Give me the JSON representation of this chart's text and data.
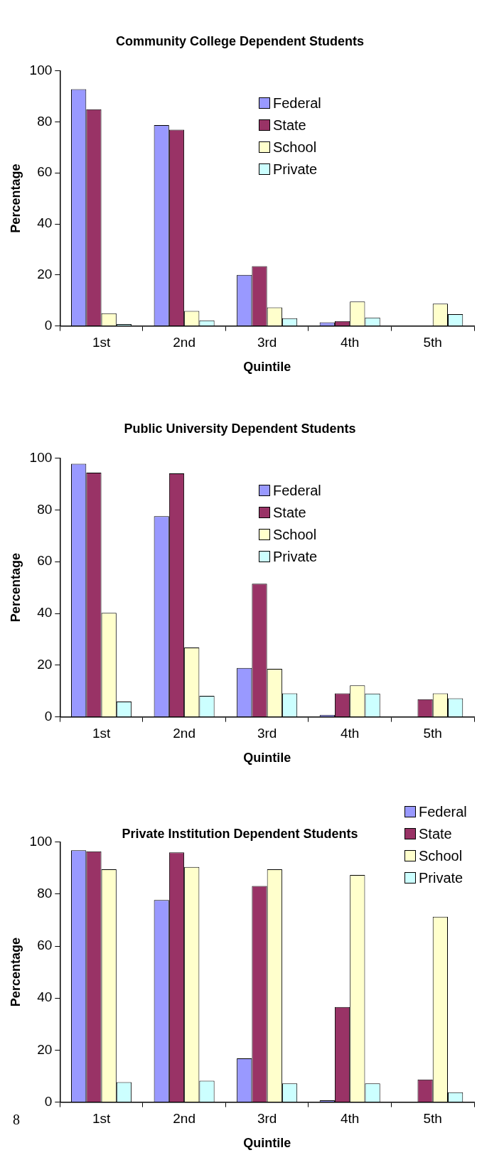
{
  "chart_data": [
    {
      "type": "bar",
      "title": "Community College Dependent Students",
      "xlabel": "Quintile",
      "ylabel": "Percentage",
      "categories": [
        "1st",
        "2nd",
        "3rd",
        "4th",
        "5th"
      ],
      "series": [
        {
          "name": "Federal",
          "color": "#9999ff",
          "values": [
            92.8,
            78.7,
            20.0,
            1.4,
            0
          ]
        },
        {
          "name": "State",
          "color": "#993366",
          "values": [
            84.9,
            76.9,
            23.4,
            1.9,
            0
          ]
        },
        {
          "name": "School",
          "color": "#ffffcc",
          "values": [
            5.0,
            5.9,
            7.3,
            9.6,
            8.7
          ]
        },
        {
          "name": "Private",
          "color": "#ccffff",
          "values": [
            0.7,
            2.2,
            3.0,
            3.3,
            4.6
          ]
        }
      ],
      "ylim": [
        0,
        100
      ],
      "yticks": [
        0,
        20,
        40,
        60,
        80,
        100
      ],
      "grid": false,
      "legend": "top"
    },
    {
      "type": "bar",
      "title": "Public University Dependent Students",
      "xlabel": "Quintile",
      "ylabel": "Percentage",
      "categories": [
        "1st",
        "2nd",
        "3rd",
        "4th",
        "5th"
      ],
      "series": [
        {
          "name": "Federal",
          "color": "#9999ff",
          "values": [
            97.8,
            77.6,
            18.9,
            0.8,
            0
          ]
        },
        {
          "name": "State",
          "color": "#993366",
          "values": [
            94.4,
            94.1,
            51.5,
            9.1,
            6.8
          ]
        },
        {
          "name": "School",
          "color": "#ffffcc",
          "values": [
            40.2,
            26.8,
            18.6,
            12.2,
            9.1
          ]
        },
        {
          "name": "Private",
          "color": "#ccffff",
          "values": [
            5.9,
            8.1,
            9.1,
            9.0,
            7.2
          ]
        }
      ],
      "ylim": [
        0,
        100
      ],
      "yticks": [
        0,
        20,
        40,
        60,
        80,
        100
      ],
      "grid": false,
      "legend": "top"
    },
    {
      "type": "bar",
      "title": "Private Institution Dependent Students",
      "xlabel": "Quintile",
      "ylabel": "Percentage",
      "categories": [
        "1st",
        "2nd",
        "3rd",
        "4th",
        "5th"
      ],
      "series": [
        {
          "name": "Federal",
          "color": "#9999ff",
          "values": [
            96.8,
            77.7,
            16.8,
            0.7,
            0
          ]
        },
        {
          "name": "State",
          "color": "#993366",
          "values": [
            96.4,
            96.0,
            83.1,
            36.6,
            8.7
          ]
        },
        {
          "name": "School",
          "color": "#ffffcc",
          "values": [
            89.5,
            90.4,
            89.5,
            87.3,
            71.3
          ]
        },
        {
          "name": "Private",
          "color": "#ccffff",
          "values": [
            7.7,
            8.2,
            7.2,
            7.2,
            3.8
          ]
        }
      ],
      "ylim": [
        0,
        100
      ],
      "yticks": [
        0,
        20,
        40,
        60,
        80,
        100
      ],
      "grid": false,
      "legend": "top right",
      "annotations": [
        "8"
      ]
    }
  ]
}
